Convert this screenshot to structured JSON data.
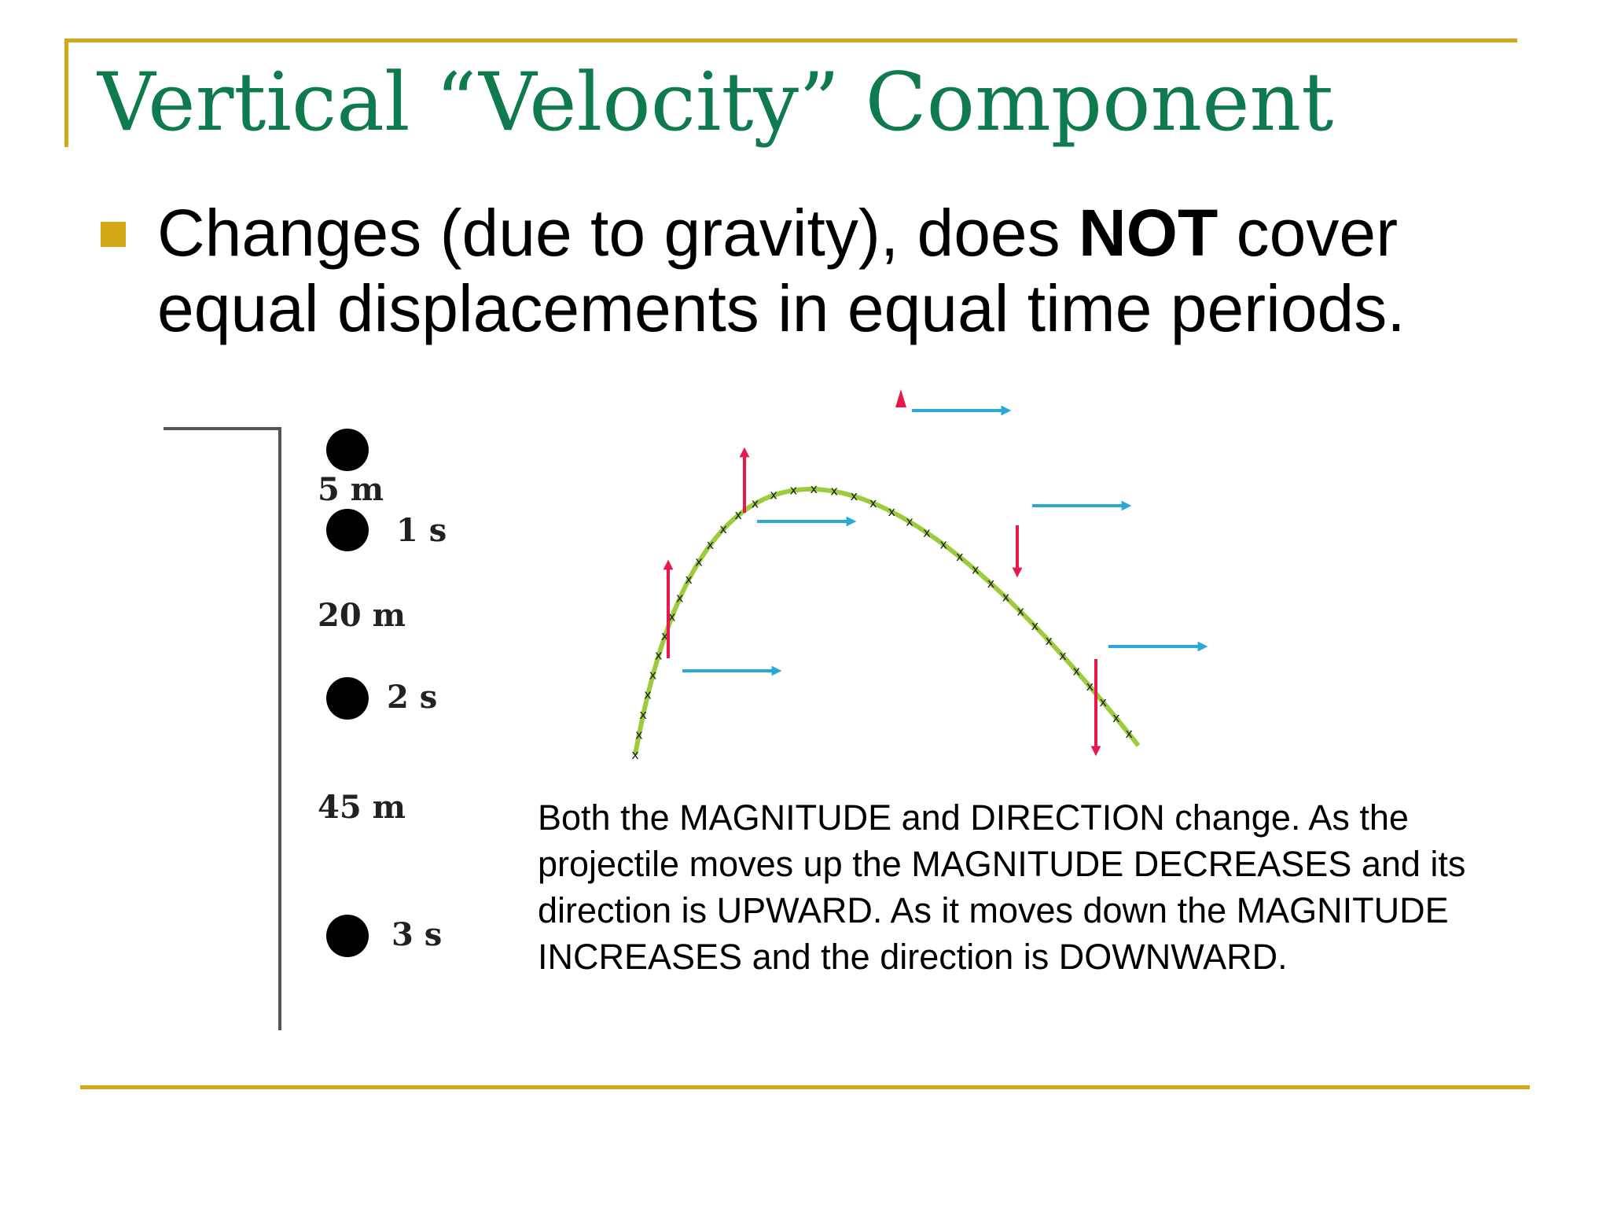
{
  "slide": {
    "title": "Vertical “Velocity” Component",
    "bullet": {
      "text_before": "Changes (due to gravity), does ",
      "text_bold": "NOT",
      "text_after": " cover equal displacements in equal time periods."
    },
    "free_fall_figure": {
      "distance_labels": [
        "5 m",
        "20 m",
        "45 m"
      ],
      "time_labels": [
        "1 s",
        "2 s",
        "3 s"
      ]
    },
    "trajectory_figure": {
      "curve_color": "#9ccc3c",
      "vertical_arrow_color": "#e8194a",
      "horizontal_arrow_color": "#2aa8d8",
      "marker_symbol": "x"
    },
    "caption": "Both the MAGNITUDE and DIRECTION change. As the projectile moves up the MAGNITUDE DECREASES and its direction is UPWARD. As it moves down the MAGNITUDE INCREASES and the direction is DOWNWARD."
  },
  "colors": {
    "title": "#0e7a4e",
    "accent_rule": "#d4a817",
    "text": "#000000"
  }
}
